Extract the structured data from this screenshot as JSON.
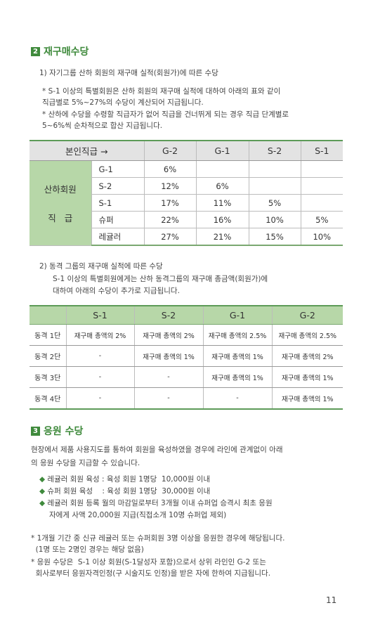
{
  "section2": {
    "number": "2",
    "title": "재구매수당",
    "sub1": "1) 자기그룹 산하 회원의 재구매 실적(회원가)에 따른 수당",
    "notes1": [
      "* S-1 이상의 특별회원은 산하 회원의 재구매 실적에 대하여 아래의 표와 같이",
      "  직급별로 5%~27%의 수당이 계산되어 지급됩니다.",
      "* 산하에 수당을 수령할 직급자가 없어 직급을 건너뛰게 되는 경우 직급 단계별로",
      "  5~6%씩 순차적으로 합산 지급됩니다."
    ],
    "table1": {
      "header_label": "본인직급 →",
      "columns": [
        "G-2",
        "G-1",
        "S-2",
        "S-1"
      ],
      "side_label_top": "산하회원",
      "side_label_bottom": "직   급",
      "rows": [
        {
          "label": "G-1",
          "cells": [
            "6%",
            "",
            "",
            ""
          ]
        },
        {
          "label": "S-2",
          "cells": [
            "12%",
            "6%",
            "",
            ""
          ]
        },
        {
          "label": "S-1",
          "cells": [
            "17%",
            "11%",
            "5%",
            ""
          ]
        },
        {
          "label": "슈퍼",
          "cells": [
            "22%",
            "16%",
            "10%",
            "5%"
          ]
        },
        {
          "label": "레귤러",
          "cells": [
            "27%",
            "21%",
            "15%",
            "10%"
          ]
        }
      ]
    },
    "sub2": "2) 동격 그룹의 재구매 실적에 따른 수당",
    "notes2": [
      "S-1 이상의 특별회원에게는 산하 동격그룹의 재구매 총금액(회원가)에",
      "대하여 아래의 수당이 추가로 지급됩니다."
    ],
    "table2": {
      "columns": [
        "S-1",
        "S-2",
        "G-1",
        "G-2"
      ],
      "rows": [
        {
          "label": "동격 1단",
          "cells": [
            "재구매 총액의 2%",
            "재구매 총액의 2%",
            "재구매 총액의 2.5%",
            "재구매 총액의 2.5%"
          ]
        },
        {
          "label": "동격 2단",
          "cells": [
            "-",
            "재구매 총액의 1%",
            "재구매 총액의 1%",
            "재구매 총액의 2%"
          ]
        },
        {
          "label": "동격 3단",
          "cells": [
            "-",
            "-",
            "재구매 총액의 1%",
            "재구매 총액의 1%"
          ]
        },
        {
          "label": "동격 4단",
          "cells": [
            "-",
            "-",
            "-",
            "재구매 총액의 1%"
          ]
        }
      ]
    }
  },
  "section3": {
    "number": "3",
    "title": "응원 수당",
    "intro": [
      "현장에서 제품 사용지도를 통하여 회원을 육성하였을 경우에 라인에 관계없이 아래",
      "의 응원 수당을 지급할 수 있습니다."
    ],
    "bullets": [
      "레귤러 회원 육성 : 육성 회원 1명당  10,000원 이내",
      "슈퍼 회원 육성    : 육성 회원 1명당  30,000원 이내",
      "레귤러 회원 등록 월의 마감일로부터 3개월 이내 슈퍼업 승격시 최초 응원"
    ],
    "bullet_cont": "자에게 사액 20,000원 지급(직접소개 10명 슈퍼업 제외)",
    "notes": [
      "* 1개월 기간 중 신규 레귤러 또는 슈퍼회원 3명 이상을 응원한 경우에 해당됩니다.",
      "  (1명 또는 2명인 경우는 해당 없음)",
      "* 응원 수당은  S-1 이상 회원(S-1달성자 포함)으로서 상위 라인인 G-2 또는",
      "  회사로부터 응원자격인정(구 시술지도 인정)을 받은 자에 한하여 지급됩니다."
    ]
  },
  "page_number": "11"
}
